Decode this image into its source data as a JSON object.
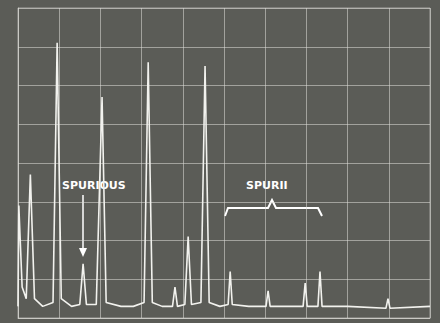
{
  "chart_data": {
    "type": "line",
    "x": [
      0,
      0.02,
      0.1,
      0.2,
      0.3,
      0.4,
      0.6,
      0.85,
      0.95,
      1.05,
      1.3,
      1.5,
      1.58,
      1.66,
      1.9,
      2.04,
      2.14,
      2.5,
      2.8,
      3.06,
      3.16,
      3.26,
      3.5,
      3.75,
      3.81,
      3.87,
      4.05,
      4.13,
      4.21,
      4.44,
      4.54,
      4.64,
      4.9,
      5.1,
      5.15,
      5.2,
      5.6,
      6.02,
      6.07,
      6.12,
      6.5,
      6.92,
      6.97,
      7.02,
      7.28,
      7.33,
      7.38,
      8,
      8.93,
      8.98,
      9.03,
      10
    ],
    "values": [
      0.3,
      2.9,
      0.8,
      0.5,
      3.7,
      0.5,
      0.3,
      0.4,
      7.1,
      0.5,
      0.3,
      0.35,
      1.4,
      0.35,
      0.35,
      5.7,
      0.4,
      0.3,
      0.3,
      0.4,
      6.6,
      0.4,
      0.3,
      0.3,
      0.8,
      0.3,
      0.35,
      2.1,
      0.35,
      0.4,
      6.5,
      0.4,
      0.3,
      0.35,
      1.2,
      0.35,
      0.3,
      0.3,
      0.7,
      0.3,
      0.3,
      0.3,
      0.9,
      0.3,
      0.3,
      1.2,
      0.3,
      0.3,
      0.25,
      0.5,
      0.25,
      0.3
    ],
    "color": "#f2f2ee",
    "xlim": [
      0,
      10
    ],
    "xticks": [
      0,
      1,
      2,
      3,
      4,
      5,
      6,
      7,
      8,
      9,
      10
    ],
    "ylim": [
      0,
      8
    ],
    "yticks": [
      0,
      1,
      2,
      3,
      4,
      5,
      6,
      7,
      8
    ],
    "grid": true,
    "tick_labels": false,
    "annotations": [
      "SPURIOUS",
      "SPURII"
    ]
  }
}
